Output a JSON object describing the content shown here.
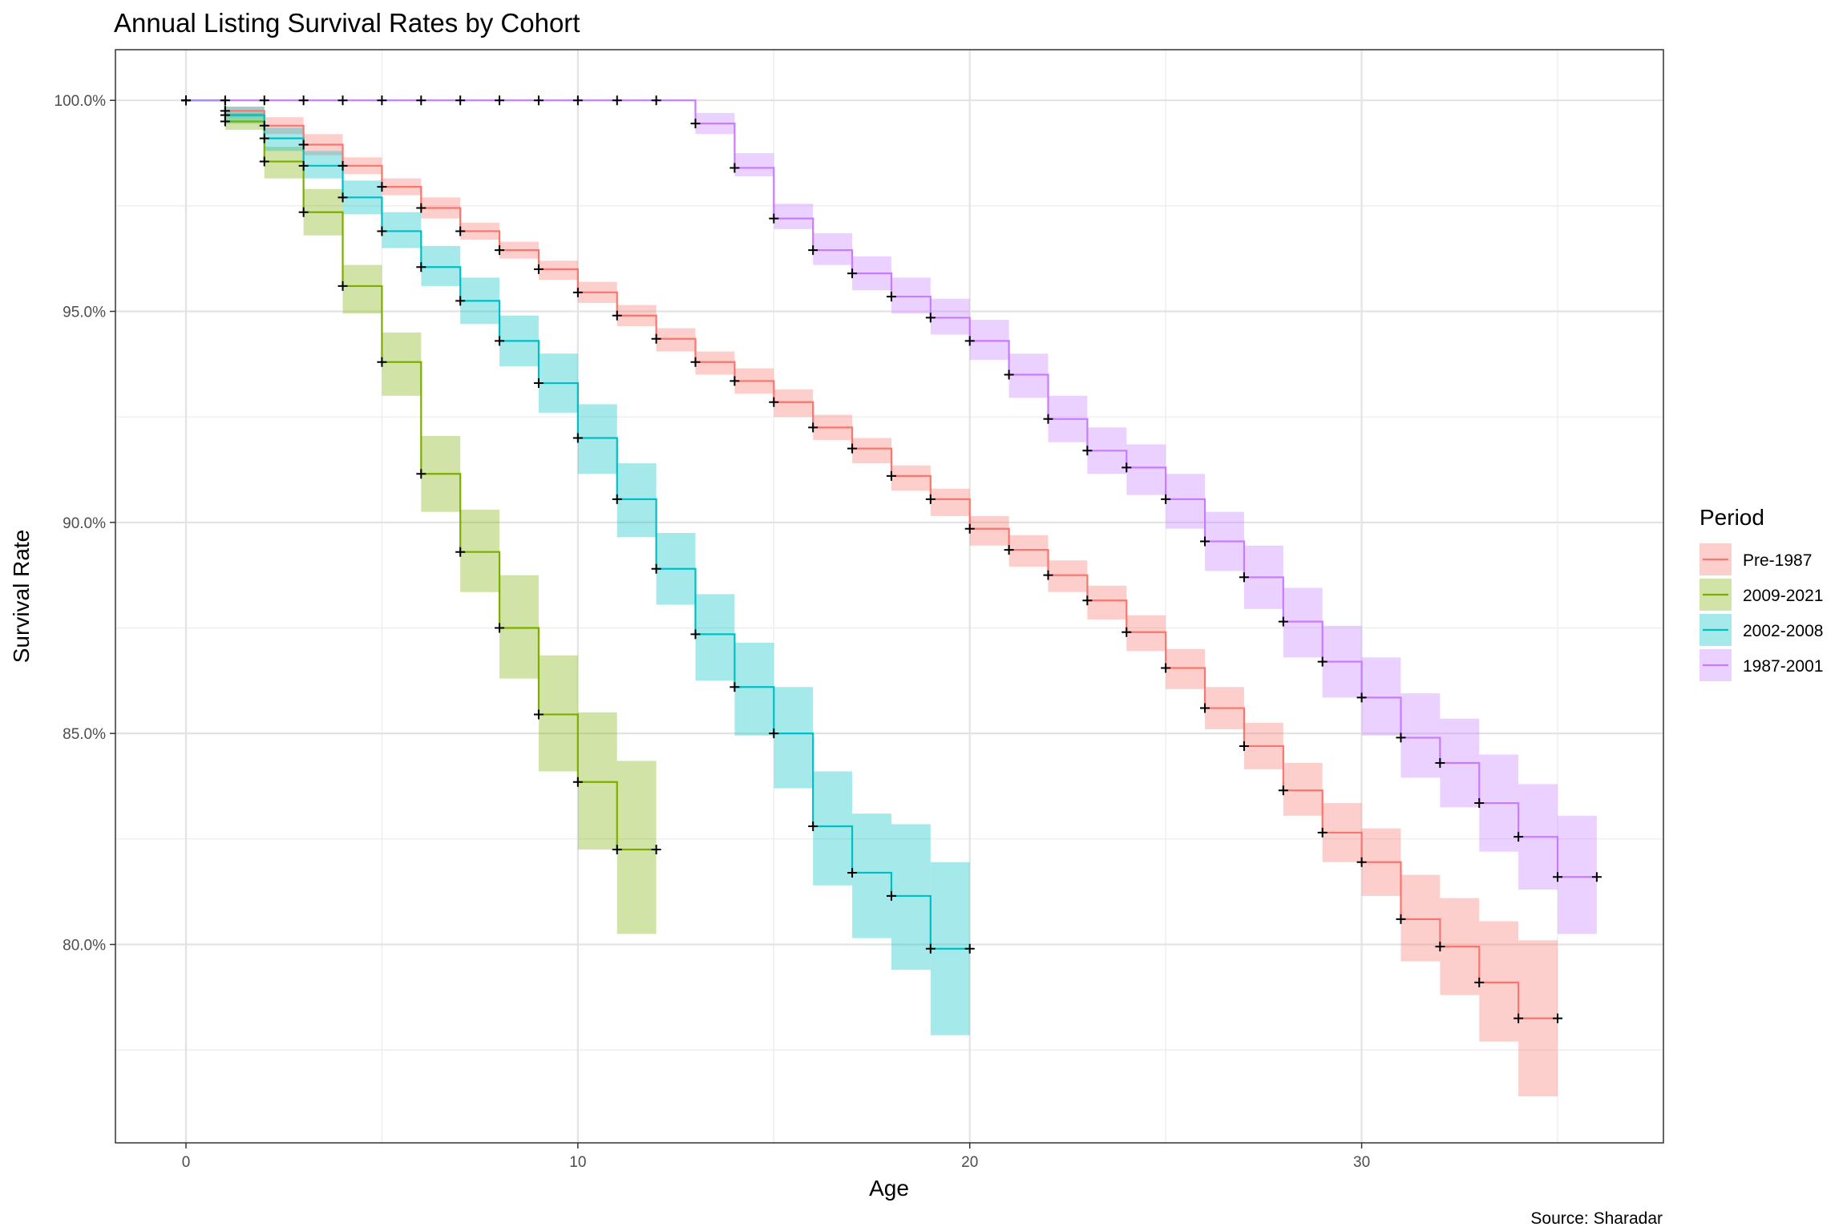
{
  "chart_data": {
    "type": "line",
    "subtype": "step survival curves with confidence bands",
    "title": "Annual Listing Survival Rates by Cohort",
    "xlabel": "Age",
    "ylabel": "Survival Rate",
    "caption": "Source: Sharadar",
    "xlim": [
      -1.8,
      37.7
    ],
    "ylim": [
      75.3,
      101.2
    ],
    "xticks": [
      0,
      10,
      20,
      30
    ],
    "xtick_labels": [
      "0",
      "10",
      "20",
      "30"
    ],
    "yticks": [
      80,
      85,
      90,
      95,
      100
    ],
    "ytick_labels": [
      "80.0%",
      "85.0%",
      "90.0%",
      "95.0%",
      "100.0%"
    ],
    "grid": true,
    "legend": {
      "title": "Period",
      "position": "right"
    },
    "series": [
      {
        "name": "Pre-1987",
        "color": "#F8766D",
        "fill": "#F8766D",
        "x": [
          0,
          1,
          2,
          3,
          4,
          5,
          6,
          7,
          8,
          9,
          10,
          11,
          12,
          13,
          14,
          15,
          16,
          17,
          18,
          19,
          20,
          21,
          22,
          23,
          24,
          25,
          26,
          27,
          28,
          29,
          30,
          31,
          32,
          33,
          34,
          35
        ],
        "y": [
          100.0,
          99.75,
          99.4,
          98.95,
          98.45,
          97.95,
          97.45,
          96.9,
          96.45,
          96.0,
          95.45,
          94.9,
          94.35,
          93.8,
          93.35,
          92.85,
          92.25,
          91.75,
          91.1,
          90.55,
          89.85,
          89.35,
          88.75,
          88.15,
          87.4,
          86.55,
          85.6,
          84.7,
          83.65,
          82.65,
          81.95,
          80.6,
          79.95,
          79.1,
          78.25,
          78.25
        ],
        "lower": [
          100.0,
          99.6,
          99.2,
          98.7,
          98.25,
          97.75,
          97.2,
          96.7,
          96.25,
          95.75,
          95.2,
          94.65,
          94.05,
          93.5,
          93.05,
          92.5,
          91.95,
          91.4,
          90.75,
          90.15,
          89.45,
          88.95,
          88.35,
          87.7,
          86.95,
          86.05,
          85.1,
          84.15,
          83.05,
          81.95,
          81.15,
          79.6,
          78.8,
          77.7,
          76.4,
          76.4
        ],
        "upper": [
          100.0,
          99.85,
          99.6,
          99.2,
          98.65,
          98.15,
          97.7,
          97.1,
          96.65,
          96.2,
          95.7,
          95.15,
          94.6,
          94.05,
          93.65,
          93.15,
          92.55,
          92.0,
          91.35,
          90.8,
          90.15,
          89.7,
          89.1,
          88.5,
          87.8,
          87.0,
          86.1,
          85.25,
          84.3,
          83.35,
          82.75,
          81.65,
          81.1,
          80.55,
          80.1,
          80.1
        ]
      },
      {
        "name": "2009-2021",
        "color": "#7CAE00",
        "fill": "#7CAE00",
        "x": [
          0,
          1,
          2,
          3,
          4,
          5,
          6,
          7,
          8,
          9,
          10,
          11,
          12
        ],
        "y": [
          100.0,
          99.5,
          98.55,
          97.35,
          95.6,
          93.8,
          91.15,
          89.3,
          87.5,
          85.45,
          83.85,
          82.25,
          82.25
        ],
        "lower": [
          100.0,
          99.3,
          98.15,
          96.8,
          94.95,
          93.0,
          90.25,
          88.35,
          86.3,
          84.1,
          82.25,
          80.25,
          80.25
        ],
        "upper": [
          100.0,
          99.7,
          98.9,
          97.9,
          96.1,
          94.5,
          92.05,
          90.3,
          88.75,
          86.85,
          85.5,
          84.35,
          84.35
        ]
      },
      {
        "name": "2002-2008",
        "color": "#00BFC4",
        "fill": "#00BFC4",
        "x": [
          0,
          1,
          2,
          3,
          4,
          5,
          6,
          7,
          8,
          9,
          10,
          11,
          12,
          13,
          14,
          15,
          16,
          17,
          18,
          19,
          20
        ],
        "y": [
          100.0,
          99.65,
          99.1,
          98.45,
          97.7,
          96.9,
          96.05,
          95.25,
          94.3,
          93.3,
          92.0,
          90.55,
          88.9,
          87.35,
          86.1,
          85.0,
          82.8,
          81.7,
          81.15,
          79.9,
          79.9
        ],
        "lower": [
          100.0,
          99.45,
          98.8,
          98.15,
          97.3,
          96.5,
          95.6,
          94.7,
          93.7,
          92.6,
          91.15,
          89.65,
          88.05,
          86.25,
          84.95,
          83.7,
          81.4,
          80.15,
          79.4,
          77.85,
          77.85
        ],
        "upper": [
          100.0,
          99.85,
          99.35,
          98.8,
          98.1,
          97.35,
          96.55,
          95.8,
          94.9,
          94.0,
          92.8,
          91.4,
          89.75,
          88.3,
          87.15,
          86.1,
          84.1,
          83.1,
          82.85,
          81.95,
          81.95
        ]
      },
      {
        "name": "1987-2001",
        "color": "#C77CFF",
        "fill": "#C77CFF",
        "x": [
          0,
          1,
          2,
          3,
          4,
          5,
          6,
          7,
          8,
          9,
          10,
          11,
          12,
          13,
          14,
          15,
          16,
          17,
          18,
          19,
          20,
          21,
          22,
          23,
          24,
          25,
          26,
          27,
          28,
          29,
          30,
          31,
          32,
          33,
          34,
          35,
          36
        ],
        "y": [
          100.0,
          100.0,
          100.0,
          100.0,
          100.0,
          100.0,
          100.0,
          100.0,
          100.0,
          100.0,
          100.0,
          100.0,
          100.0,
          99.45,
          98.4,
          97.2,
          96.45,
          95.9,
          95.35,
          94.85,
          94.3,
          93.5,
          92.45,
          91.7,
          91.3,
          90.55,
          89.55,
          88.7,
          87.65,
          86.7,
          85.85,
          84.9,
          84.3,
          83.35,
          82.55,
          81.6,
          81.6
        ],
        "lower": [
          100.0,
          100.0,
          100.0,
          100.0,
          100.0,
          100.0,
          100.0,
          100.0,
          100.0,
          100.0,
          100.0,
          100.0,
          100.0,
          99.2,
          98.2,
          96.95,
          96.1,
          95.5,
          94.95,
          94.45,
          93.85,
          92.95,
          91.9,
          91.15,
          90.65,
          89.85,
          88.85,
          87.95,
          86.8,
          85.85,
          84.95,
          83.95,
          83.25,
          82.2,
          81.3,
          80.25,
          80.25
        ],
        "upper": [
          100.0,
          100.0,
          100.0,
          100.0,
          100.0,
          100.0,
          100.0,
          100.0,
          100.0,
          100.0,
          100.0,
          100.0,
          100.0,
          99.7,
          98.75,
          97.55,
          96.85,
          96.3,
          95.8,
          95.3,
          94.8,
          94.0,
          93.0,
          92.25,
          91.85,
          91.15,
          90.25,
          89.45,
          88.45,
          87.55,
          86.8,
          85.95,
          85.35,
          84.5,
          83.8,
          83.05,
          83.05
        ]
      }
    ]
  }
}
